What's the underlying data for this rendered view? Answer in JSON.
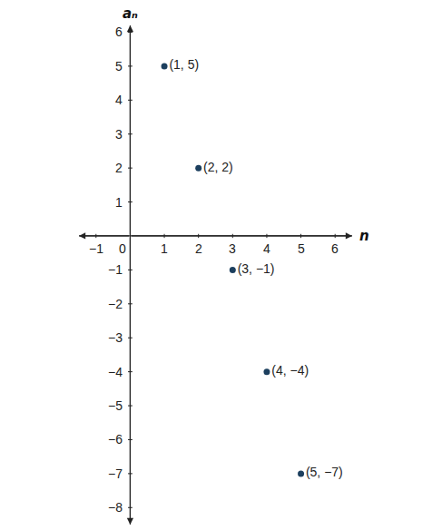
{
  "chart_data": {
    "type": "scatter",
    "xlabel": "n",
    "ylabel": "aₙ",
    "x": [
      1,
      2,
      3,
      4,
      5
    ],
    "values": [
      5,
      2,
      -1,
      -4,
      -7
    ],
    "value_labels": [
      "(1, 5)",
      "(2, 2)",
      "(3, −1)",
      "(4, −4)",
      "(5, −7)"
    ],
    "data_labels": true,
    "color": "#1c3f5e",
    "marker": "circle",
    "grid": false,
    "xlim": [
      -1.5,
      6.5
    ],
    "ylim": [
      -8.5,
      6.2
    ],
    "xticks": [
      {
        "value": -1,
        "label": "−1"
      },
      0,
      1,
      2,
      3,
      4,
      5,
      6
    ],
    "yticks": [
      {
        "value": -8,
        "label": "−8"
      },
      {
        "value": -7,
        "label": "−7"
      },
      {
        "value": -6,
        "label": "−6"
      },
      {
        "value": -5,
        "label": "−5"
      },
      {
        "value": -4,
        "label": "−4"
      },
      {
        "value": -3,
        "label": "−3"
      },
      {
        "value": -2,
        "label": "−2"
      },
      {
        "value": -1,
        "label": "−1"
      },
      1,
      2,
      3,
      4,
      5,
      6
    ]
  }
}
